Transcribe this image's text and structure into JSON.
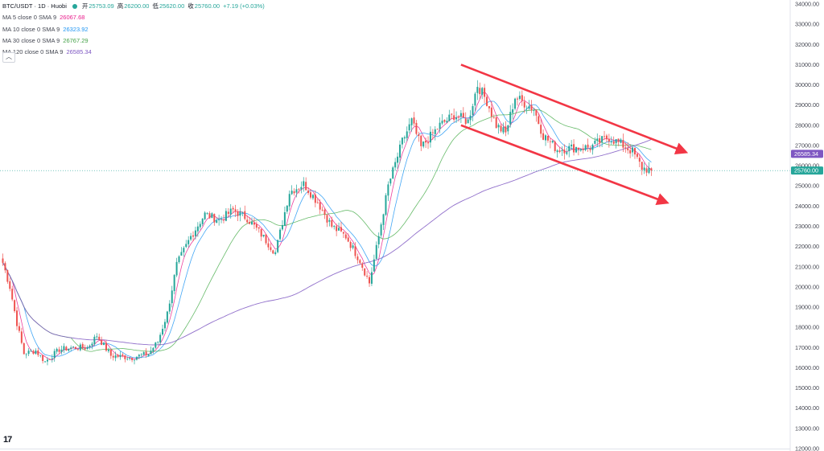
{
  "header": {
    "symbol": "BTC/USDT · 1D · Huobi",
    "ohlc": [
      {
        "key": "开",
        "value": "25753.09"
      },
      {
        "key": "高",
        "value": "26200.00"
      },
      {
        "key": "低",
        "value": "25620.00"
      },
      {
        "key": "收",
        "value": "25760.00"
      }
    ],
    "change": "+7.19 (+0.03%)",
    "status_color": "#26a69a"
  },
  "legend": [
    {
      "label": "MA 5 close 0 SMA 9",
      "value": "26067.68",
      "color": "#e91e8c"
    },
    {
      "label": "MA 10 close 0 SMA 9",
      "value": "26323.92",
      "color": "#2196f3"
    },
    {
      "label": "MA 30 close 0 SMA 9",
      "value": "26767.29",
      "color": "#4caf50"
    },
    {
      "label": "MA 120 close 0 SMA 9",
      "value": "26585.34",
      "color": "#7e57c2"
    }
  ],
  "collapse_icon": "chevron-up-icon",
  "price_tags": [
    {
      "text": "26585.34",
      "value": 26585.34,
      "color": "#7e57c2"
    },
    {
      "text": "25760.00",
      "value": 25760.0,
      "color": "#26a69a"
    }
  ],
  "chart_data": {
    "type": "candlestick",
    "y_ticks": [
      "34000.00",
      "33000.00",
      "32000.00",
      "31000.00",
      "30000.00",
      "29000.00",
      "28000.00",
      "27000.00",
      "26000.00",
      "25000.00",
      "24000.00",
      "23000.00",
      "22000.00",
      "21000.00",
      "20000.00",
      "19000.00",
      "18000.00",
      "17000.00",
      "16000.00",
      "15000.00",
      "14000.00",
      "13000.00",
      "12000.00"
    ],
    "ylim": [
      12000,
      34200
    ],
    "colors": {
      "up": "#26a69a",
      "down": "#ef5350",
      "channel": "#f23645"
    },
    "last_price": 25760.0,
    "anchors": [
      [
        0,
        21200
      ],
      [
        3,
        20000
      ],
      [
        6,
        18200
      ],
      [
        9,
        16700
      ],
      [
        14,
        16850
      ],
      [
        18,
        16300
      ],
      [
        24,
        16900
      ],
      [
        30,
        17000
      ],
      [
        36,
        17000
      ],
      [
        40,
        17600
      ],
      [
        46,
        16600
      ],
      [
        55,
        16500
      ],
      [
        62,
        16700
      ],
      [
        66,
        17300
      ],
      [
        70,
        18700
      ],
      [
        74,
        21100
      ],
      [
        80,
        22500
      ],
      [
        86,
        23600
      ],
      [
        92,
        23300
      ],
      [
        98,
        23800
      ],
      [
        104,
        23400
      ],
      [
        110,
        22600
      ],
      [
        116,
        21700
      ],
      [
        122,
        24700
      ],
      [
        128,
        25100
      ],
      [
        134,
        24200
      ],
      [
        140,
        23000
      ],
      [
        146,
        22500
      ],
      [
        152,
        21300
      ],
      [
        156,
        20200
      ],
      [
        160,
        22500
      ],
      [
        164,
        25000
      ],
      [
        170,
        27200
      ],
      [
        174,
        28200
      ],
      [
        178,
        26900
      ],
      [
        186,
        28000
      ],
      [
        192,
        28500
      ],
      [
        198,
        28200
      ],
      [
        202,
        30000
      ],
      [
        206,
        29200
      ],
      [
        210,
        28000
      ],
      [
        214,
        27600
      ],
      [
        218,
        29400
      ],
      [
        226,
        28800
      ],
      [
        230,
        27500
      ],
      [
        236,
        26800
      ],
      [
        244,
        26900
      ],
      [
        250,
        26900
      ],
      [
        254,
        27200
      ],
      [
        258,
        27400
      ],
      [
        264,
        27000
      ],
      [
        268,
        26700
      ],
      [
        272,
        25900
      ],
      [
        276,
        25760
      ]
    ],
    "channel": {
      "upper": [
        [
          195,
          31000
        ],
        [
          290,
          26700
        ]
      ],
      "lower": [
        [
          195,
          28000
        ],
        [
          282,
          24200
        ]
      ]
    },
    "ma_series": [
      {
        "name": "MA 5",
        "period": 5,
        "color": "#e91e8c",
        "width": 0.8
      },
      {
        "name": "MA 10",
        "period": 10,
        "color": "#2196f3",
        "width": 0.8
      },
      {
        "name": "MA 30",
        "period": 30,
        "color": "#4caf50",
        "width": 0.8
      },
      {
        "name": "MA 120",
        "period": 120,
        "color": "#7e57c2",
        "width": 0.9
      }
    ]
  }
}
